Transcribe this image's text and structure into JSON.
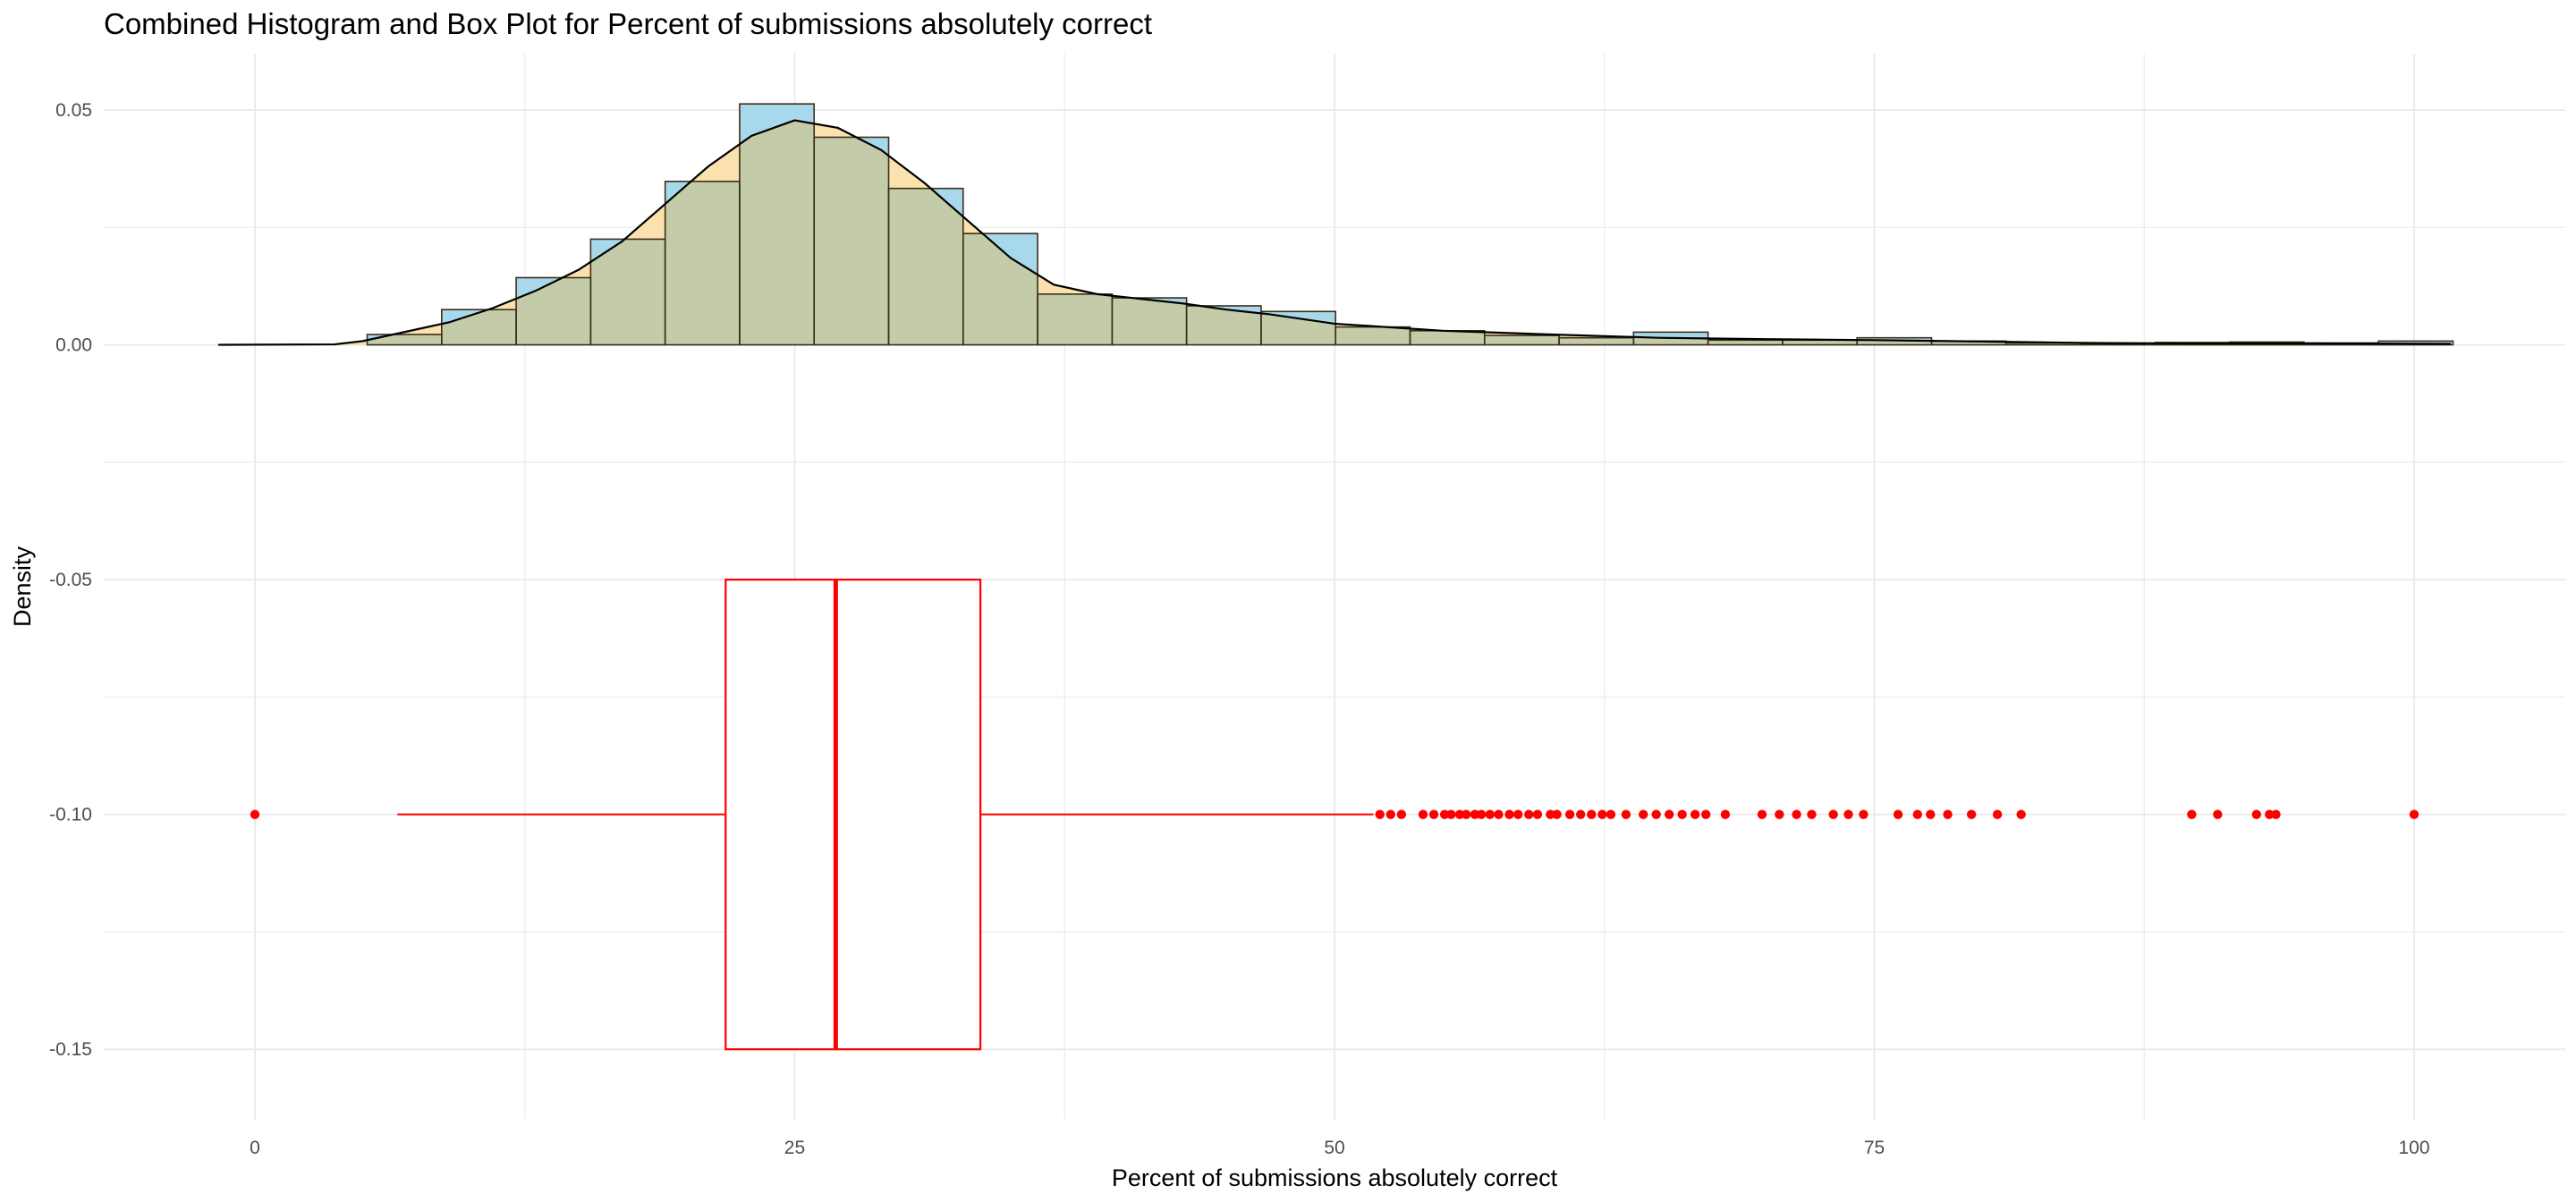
{
  "title": "Combined Histogram and Box Plot for Percent of submissions absolutely correct",
  "colors": {
    "hist_fill": "#a8d8ec",
    "density_fill": "#fbe1ad",
    "overlap_fill": "#c3cba8",
    "bar_stroke": "#3a2f1a",
    "box": "#ff0000",
    "grid": "#ebebeb",
    "background": "#ffffff"
  },
  "chart_data": {
    "type": "histogram+boxplot",
    "xlabel": "Percent of submissions absolutely correct",
    "ylabel": "Density",
    "xlim": [
      -7,
      107
    ],
    "ylim": [
      -0.165,
      0.062
    ],
    "x_ticks": [
      0,
      25,
      50,
      75,
      100
    ],
    "x_tick_labels": [
      "0",
      "25",
      "50",
      "75",
      "100"
    ],
    "y_ticks": [
      0.05,
      0,
      -0.05,
      -0.1,
      -0.15
    ],
    "y_tick_labels": [
      "0.05",
      "0.00",
      "-0.05",
      "-0.10",
      "-0.15"
    ],
    "grid": true,
    "histogram": {
      "bin_width": 3.45,
      "bin_starts": [
        5.2,
        8.65,
        12.1,
        15.55,
        19.0,
        22.45,
        25.9,
        29.35,
        32.8,
        36.25,
        39.7,
        43.15,
        46.6,
        50.05,
        53.5,
        56.95,
        60.4,
        63.85,
        67.3,
        70.75,
        74.2,
        77.65,
        81.1,
        84.55,
        88.0,
        91.45,
        94.9,
        98.35
      ],
      "densities": [
        0.0022,
        0.0075,
        0.0143,
        0.0225,
        0.0348,
        0.0513,
        0.0442,
        0.0333,
        0.0237,
        0.0108,
        0.01,
        0.0083,
        0.0071,
        0.0038,
        0.003,
        0.002,
        0.0015,
        0.0027,
        0.001,
        0.001,
        0.0015,
        0.0008,
        0.0004,
        0.0003,
        0.0005,
        0.0006,
        0.0004,
        0.0008
      ]
    },
    "density_curve": {
      "x": [
        -1.7,
        3.7,
        5,
        7,
        9,
        11,
        13,
        15,
        17,
        19,
        21,
        23,
        25,
        27,
        29,
        31,
        33,
        35,
        37,
        39,
        41,
        43,
        45,
        47,
        50,
        55,
        60,
        65,
        70,
        75,
        80,
        85,
        90,
        95,
        101.7
      ],
      "y": [
        0,
        0.0001,
        0.0008,
        0.0028,
        0.0048,
        0.0078,
        0.0115,
        0.016,
        0.022,
        0.03,
        0.038,
        0.0445,
        0.0478,
        0.0462,
        0.0415,
        0.0345,
        0.0265,
        0.0185,
        0.0128,
        0.0108,
        0.0098,
        0.0088,
        0.0075,
        0.0065,
        0.0045,
        0.003,
        0.0022,
        0.0015,
        0.0012,
        0.001,
        0.0007,
        0.0004,
        0.0003,
        0.0003,
        0.0002
      ]
    },
    "boxplot": {
      "y_center": -0.1,
      "y_bottom": -0.15,
      "y_top": -0.05,
      "whisker_low": 6.6,
      "q1": 21.8,
      "median": 26.9,
      "q3": 33.6,
      "whisker_high": 51.8,
      "outliers": [
        0,
        52.1,
        52.6,
        53.1,
        54.1,
        54.6,
        55.1,
        55.4,
        55.8,
        56.1,
        56.5,
        56.8,
        57.2,
        57.6,
        58.1,
        58.5,
        59.0,
        59.4,
        60.0,
        60.3,
        60.9,
        61.4,
        61.9,
        62.4,
        62.8,
        63.5,
        64.3,
        64.9,
        65.5,
        66.1,
        66.7,
        67.2,
        68.1,
        69.8,
        70.6,
        71.4,
        72.1,
        73.1,
        73.8,
        74.5,
        76.1,
        77.0,
        77.6,
        78.4,
        79.5,
        80.7,
        81.8,
        89.7,
        90.9,
        92.7,
        93.3,
        93.6,
        100
      ]
    }
  }
}
